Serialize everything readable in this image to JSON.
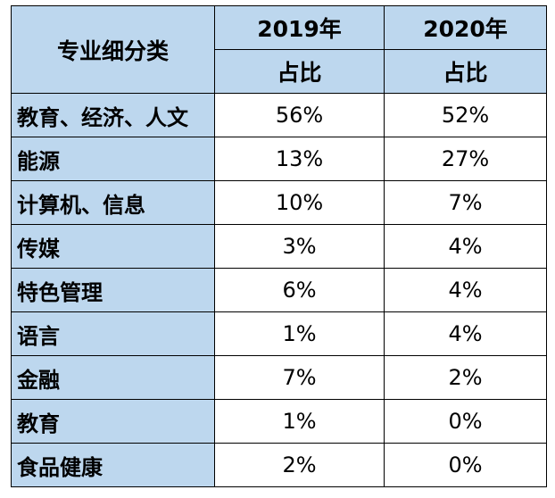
{
  "table": {
    "category_header": "专业细分类",
    "years": [
      {
        "label": "2019年",
        "sub_label": "占比"
      },
      {
        "label": "2020年",
        "sub_label": "占比"
      }
    ],
    "rows": [
      {
        "category": "教育、经济、人文",
        "y2019": "56%",
        "y2020": "52%"
      },
      {
        "category": "能源",
        "y2019": "13%",
        "y2020": "27%"
      },
      {
        "category": "计算机、信息",
        "y2019": "10%",
        "y2020": "7%"
      },
      {
        "category": "传媒",
        "y2019": "3%",
        "y2020": "4%"
      },
      {
        "category": "特色管理",
        "y2019": "6%",
        "y2020": "4%"
      },
      {
        "category": "语言",
        "y2019": "1%",
        "y2020": "4%"
      },
      {
        "category": "金融",
        "y2019": "7%",
        "y2020": "2%"
      },
      {
        "category": "教育",
        "y2019": "1%",
        "y2020": "0%"
      },
      {
        "category": "食品健康",
        "y2019": "2%",
        "y2020": "0%"
      }
    ],
    "colors": {
      "header_fill": "#bdd7ee",
      "cell_fill": "#ffffff",
      "border": "#000000"
    }
  }
}
